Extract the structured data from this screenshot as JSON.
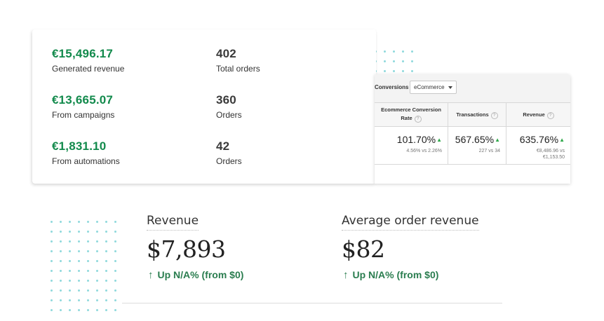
{
  "summary_stats": {
    "rows": [
      {
        "value": "€15,496.17",
        "label": "Generated revenue",
        "count": "402",
        "count_label": "Total orders"
      },
      {
        "value": "€13,665.07",
        "label": "From campaigns",
        "count": "360",
        "count_label": "Orders"
      },
      {
        "value": "€1,831.10",
        "label": "From automations",
        "count": "42",
        "count_label": "Orders"
      }
    ]
  },
  "analytics_panel": {
    "toolbar_label": "Conversions",
    "selected_option": "eCommerce",
    "columns": [
      {
        "header_line1": "Ecommerce Conversion",
        "header_line2": "Rate",
        "value": "101.70%",
        "sub1": "4.56% vs 2.26%",
        "sub2": ""
      },
      {
        "header_line1": "Transactions",
        "header_line2": "",
        "value": "567.65%",
        "sub1": "227 vs 34",
        "sub2": ""
      },
      {
        "header_line1": "Revenue",
        "header_line2": "",
        "value": "635.76%",
        "sub1": "€8,486.96 vs",
        "sub2": "€1,153.50"
      }
    ],
    "help_glyph": "?",
    "up_glyph": "▲"
  },
  "metrics": {
    "revenue": {
      "title": "Revenue",
      "value": "$7,893",
      "change": "Up N/A% (from $0)"
    },
    "average_order": {
      "title": "Average order revenue",
      "value": "$82",
      "change": "Up N/A% (from $0)"
    },
    "up_arrow": "↑"
  },
  "colors": {
    "accent_green": "#128a4c",
    "change_green": "#2a7d4f",
    "dot_teal": "#8fd9dc"
  }
}
